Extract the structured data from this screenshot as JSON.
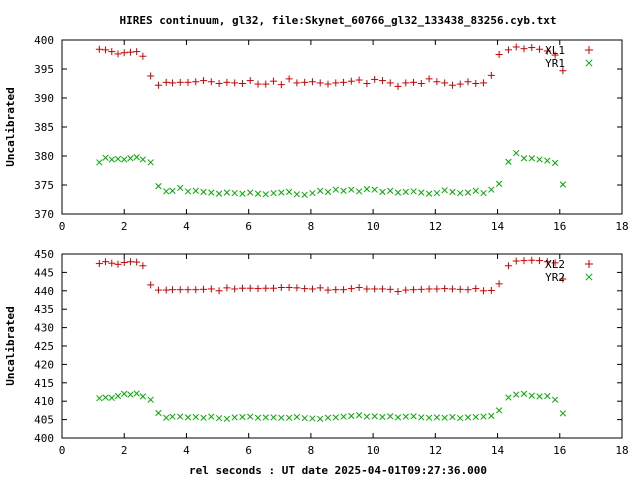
{
  "chart_data": [
    {
      "type": "scatter",
      "title": "HIRES continuum, gl32, file:Skynet_60766_gl32_133438_83256.cyb.txt",
      "xlabel": "",
      "ylabel": "Uncalibrated",
      "xlim": [
        0,
        18
      ],
      "ylim": [
        370,
        400
      ],
      "xticks": [
        0,
        2,
        4,
        6,
        8,
        10,
        12,
        14,
        16,
        18
      ],
      "yticks": [
        370,
        375,
        380,
        385,
        390,
        395,
        400
      ],
      "legend_position": "top-right",
      "grid": false,
      "series": [
        {
          "name": "XL1",
          "marker": "plus",
          "color": "#cc0000",
          "x": [
            1.2,
            1.4,
            1.6,
            1.8,
            2.0,
            2.2,
            2.4,
            2.6,
            2.85,
            3.1,
            3.35,
            3.55,
            3.8,
            4.05,
            4.3,
            4.55,
            4.8,
            5.05,
            5.3,
            5.55,
            5.8,
            6.05,
            6.3,
            6.55,
            6.8,
            7.05,
            7.3,
            7.55,
            7.8,
            8.05,
            8.3,
            8.55,
            8.8,
            9.05,
            9.3,
            9.55,
            9.8,
            10.05,
            10.3,
            10.55,
            10.8,
            11.05,
            11.3,
            11.55,
            11.8,
            12.05,
            12.3,
            12.55,
            12.8,
            13.05,
            13.3,
            13.55,
            13.8,
            14.05,
            14.35,
            14.6,
            14.85,
            15.1,
            15.35,
            15.6,
            15.85,
            16.1
          ],
          "y": [
            398.4,
            398.3,
            398.0,
            397.6,
            397.8,
            397.9,
            398.0,
            397.2,
            393.8,
            392.2,
            392.7,
            392.6,
            392.7,
            392.7,
            392.8,
            393.0,
            392.8,
            392.5,
            392.7,
            392.6,
            392.5,
            393.0,
            392.4,
            392.4,
            392.9,
            392.3,
            393.3,
            392.6,
            392.7,
            392.8,
            392.6,
            392.4,
            392.6,
            392.7,
            392.9,
            393.1,
            392.5,
            393.2,
            393.0,
            392.6,
            392.0,
            392.6,
            392.7,
            392.5,
            393.3,
            392.8,
            392.6,
            392.2,
            392.4,
            392.8,
            392.5,
            392.6,
            393.9,
            397.5,
            398.3,
            398.8,
            398.5,
            398.7,
            398.4,
            398.1,
            397.4,
            394.7
          ]
        },
        {
          "name": "YR1",
          "marker": "cross",
          "color": "#00aa00",
          "x": [
            1.2,
            1.4,
            1.6,
            1.8,
            2.0,
            2.2,
            2.4,
            2.6,
            2.85,
            3.1,
            3.35,
            3.55,
            3.8,
            4.05,
            4.3,
            4.55,
            4.8,
            5.05,
            5.3,
            5.55,
            5.8,
            6.05,
            6.3,
            6.55,
            6.8,
            7.05,
            7.3,
            7.55,
            7.8,
            8.05,
            8.3,
            8.55,
            8.8,
            9.05,
            9.3,
            9.55,
            9.8,
            10.05,
            10.3,
            10.55,
            10.8,
            11.05,
            11.3,
            11.55,
            11.8,
            12.05,
            12.3,
            12.55,
            12.8,
            13.05,
            13.3,
            13.55,
            13.8,
            14.05,
            14.35,
            14.6,
            14.85,
            15.1,
            15.35,
            15.6,
            15.85,
            16.1
          ],
          "y": [
            378.9,
            379.7,
            379.4,
            379.5,
            379.4,
            379.6,
            379.8,
            379.4,
            378.9,
            374.8,
            373.9,
            374.0,
            374.5,
            373.9,
            374.0,
            373.8,
            373.7,
            373.5,
            373.7,
            373.6,
            373.5,
            373.7,
            373.5,
            373.4,
            373.6,
            373.7,
            373.8,
            373.4,
            373.3,
            373.6,
            374.0,
            373.8,
            374.2,
            374.0,
            374.2,
            373.9,
            374.3,
            374.2,
            373.8,
            374.0,
            373.7,
            373.8,
            373.9,
            373.7,
            373.5,
            373.6,
            374.1,
            373.8,
            373.6,
            373.7,
            374.0,
            373.6,
            374.2,
            375.2,
            379.0,
            380.5,
            379.6,
            379.6,
            379.4,
            379.2,
            378.8,
            375.1
          ]
        }
      ]
    },
    {
      "type": "scatter",
      "title": "",
      "xlabel": "rel seconds : UT date 2025-04-01T09:27:36.000",
      "ylabel": "Uncalibrated",
      "xlim": [
        0,
        18
      ],
      "ylim": [
        400,
        450
      ],
      "xticks": [
        0,
        2,
        4,
        6,
        8,
        10,
        12,
        14,
        16,
        18
      ],
      "yticks": [
        400,
        405,
        410,
        415,
        420,
        425,
        430,
        435,
        440,
        445,
        450
      ],
      "legend_position": "top-right",
      "grid": false,
      "series": [
        {
          "name": "XL2",
          "marker": "plus",
          "color": "#cc0000",
          "x": [
            1.2,
            1.4,
            1.6,
            1.8,
            2.0,
            2.2,
            2.4,
            2.6,
            2.85,
            3.1,
            3.35,
            3.55,
            3.8,
            4.05,
            4.3,
            4.55,
            4.8,
            5.05,
            5.3,
            5.55,
            5.8,
            6.05,
            6.3,
            6.55,
            6.8,
            7.05,
            7.3,
            7.55,
            7.8,
            8.05,
            8.3,
            8.55,
            8.8,
            9.05,
            9.3,
            9.55,
            9.8,
            10.05,
            10.3,
            10.55,
            10.8,
            11.05,
            11.3,
            11.55,
            11.8,
            12.05,
            12.3,
            12.55,
            12.8,
            13.05,
            13.3,
            13.55,
            13.8,
            14.05,
            14.35,
            14.6,
            14.85,
            15.1,
            15.35,
            15.6,
            15.85,
            16.1
          ],
          "y": [
            447.4,
            447.9,
            447.5,
            447.2,
            447.7,
            447.9,
            447.8,
            446.8,
            441.6,
            440.2,
            440.2,
            440.3,
            440.3,
            440.3,
            440.3,
            440.4,
            440.5,
            440.0,
            440.8,
            440.5,
            440.7,
            440.7,
            440.6,
            440.7,
            440.7,
            440.9,
            440.9,
            440.8,
            440.6,
            440.5,
            440.8,
            440.2,
            440.3,
            440.3,
            440.6,
            440.9,
            440.5,
            440.5,
            440.5,
            440.4,
            439.8,
            440.2,
            440.3,
            440.4,
            440.5,
            440.5,
            440.6,
            440.5,
            440.4,
            440.3,
            440.6,
            440.0,
            440.1,
            441.9,
            446.8,
            448.1,
            448.2,
            448.3,
            448.2,
            447.9,
            447.6,
            443.2
          ]
        },
        {
          "name": "YR2",
          "marker": "cross",
          "color": "#00aa00",
          "x": [
            1.2,
            1.4,
            1.6,
            1.8,
            2.0,
            2.2,
            2.4,
            2.6,
            2.85,
            3.1,
            3.35,
            3.55,
            3.8,
            4.05,
            4.3,
            4.55,
            4.8,
            5.05,
            5.3,
            5.55,
            5.8,
            6.05,
            6.3,
            6.55,
            6.8,
            7.05,
            7.3,
            7.55,
            7.8,
            8.05,
            8.3,
            8.55,
            8.8,
            9.05,
            9.3,
            9.55,
            9.8,
            10.05,
            10.3,
            10.55,
            10.8,
            11.05,
            11.3,
            11.55,
            11.8,
            12.05,
            12.3,
            12.55,
            12.8,
            13.05,
            13.3,
            13.55,
            13.8,
            14.05,
            14.35,
            14.6,
            14.85,
            15.1,
            15.35,
            15.6,
            15.85,
            16.1
          ],
          "y": [
            410.8,
            411.0,
            410.9,
            411.4,
            412.0,
            411.8,
            412.1,
            411.3,
            410.4,
            406.8,
            405.5,
            405.8,
            405.8,
            405.6,
            405.7,
            405.5,
            405.8,
            405.4,
            405.2,
            405.6,
            405.7,
            405.8,
            405.5,
            405.6,
            405.6,
            405.5,
            405.5,
            405.7,
            405.4,
            405.3,
            405.2,
            405.5,
            405.6,
            405.8,
            406.0,
            406.2,
            405.8,
            405.9,
            405.7,
            405.9,
            405.6,
            405.8,
            405.9,
            405.6,
            405.5,
            405.6,
            405.5,
            405.7,
            405.4,
            405.6,
            405.7,
            405.8,
            406.0,
            407.5,
            411.0,
            411.8,
            412.0,
            411.5,
            411.3,
            411.4,
            410.4,
            406.7
          ]
        }
      ]
    }
  ]
}
